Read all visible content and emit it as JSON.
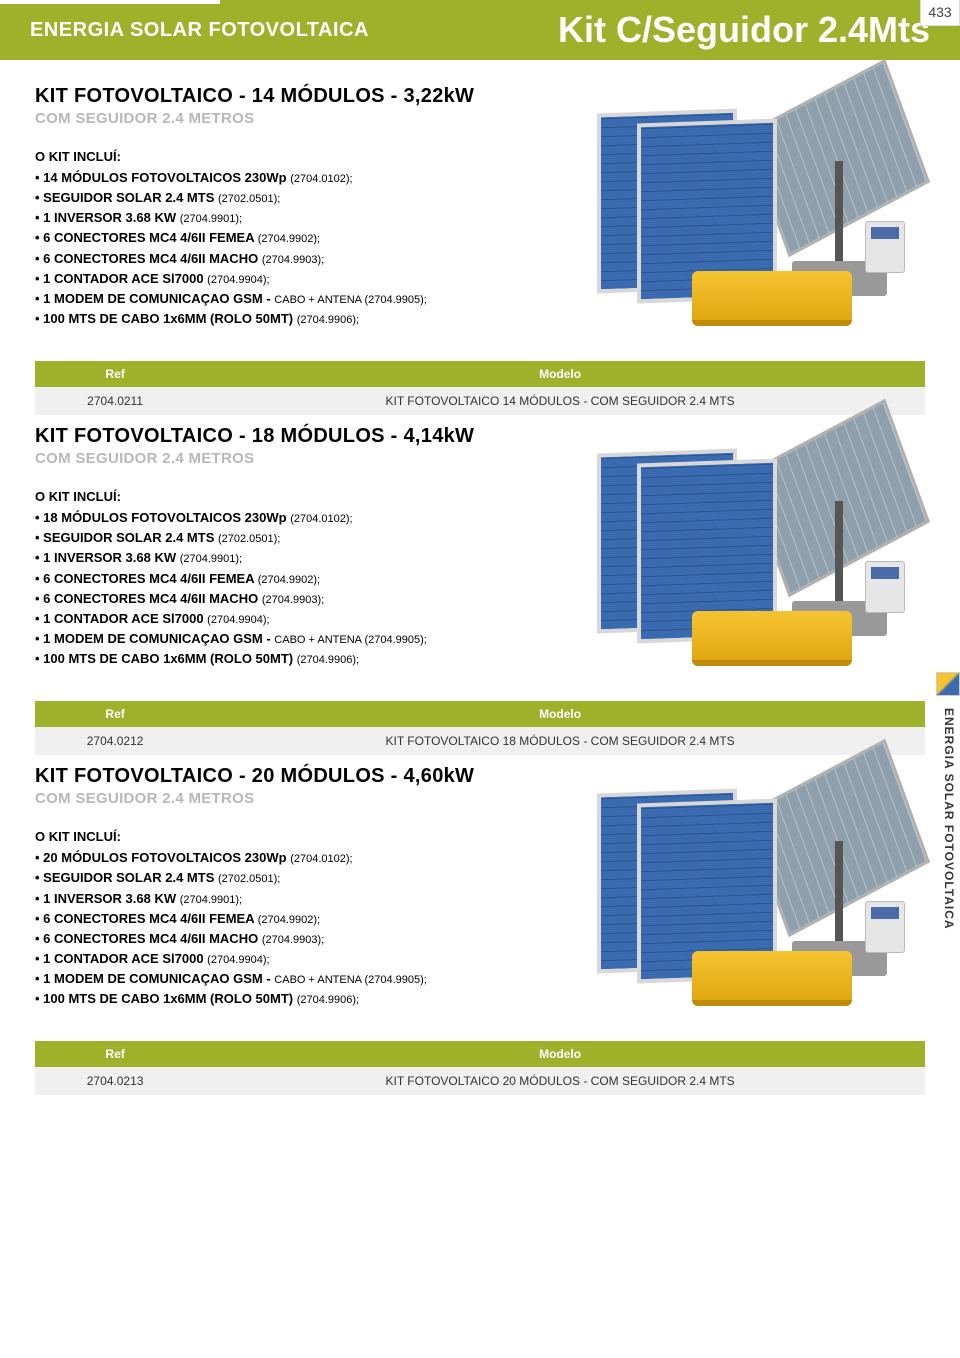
{
  "colors": {
    "brand_green": "#9eb12b",
    "muted_gray": "#b8b8b8",
    "row_bg": "#f0f0f0",
    "panel_blue": "#3a6bb0",
    "inverter_yellow": "#f5c431"
  },
  "header": {
    "category": "ENERGIA SOLAR FOTOVOLTAICA",
    "title": "Kit C/Seguidor 2.4Mts",
    "page_number": "433"
  },
  "side_tab": "ENERGIA SOLAR FOTOVOLTAICA",
  "table_headers": {
    "ref": "Ref",
    "modelo": "Modelo"
  },
  "inclui_label": "O KIT INCLUÍ:",
  "kits": [
    {
      "title": "KIT FOTOVOLTAICO - 14 MÓDULOS - 3,22kW",
      "subtitle": "COM SEGUIDOR 2.4 METROS",
      "items": [
        {
          "main": "14 MÓDULOS FOTOVOLTAICOS 230Wp ",
          "code": "(2704.0102);"
        },
        {
          "main": "SEGUIDOR SOLAR 2.4 MTS ",
          "code": "(2702.0501);"
        },
        {
          "main": "1 INVERSOR  3.68 KW ",
          "code": "(2704.9901);"
        },
        {
          "main": "6 CONECTORES MC4 4/6II FEMEA ",
          "code": "(2704.9902);"
        },
        {
          "main": "6 CONECTORES MC4 4/6II MACHO ",
          "code": "(2704.9903);"
        },
        {
          "main": "1 CONTADOR ACE Sl7000 ",
          "code": "(2704.9904);"
        },
        {
          "main": "1 MODEM DE COMUNICAÇAO GSM - ",
          "code": "CABO + ANTENA (2704.9905);"
        },
        {
          "main": "100 MTS DE CABO 1x6MM (ROLO 50MT) ",
          "code": "(2704.9906);"
        }
      ],
      "ref": "2704.0211",
      "modelo": "KIT FOTOVOLTAICO 14 MÓDULOS - COM SEGUIDOR 2.4 MTS"
    },
    {
      "title": "KIT FOTOVOLTAICO - 18 MÓDULOS - 4,14kW",
      "subtitle": "COM SEGUIDOR 2.4 METROS",
      "items": [
        {
          "main": "18 MÓDULOS FOTOVOLTAICOS 230Wp ",
          "code": "(2704.0102);"
        },
        {
          "main": "SEGUIDOR SOLAR 2.4 MTS ",
          "code": "(2702.0501);"
        },
        {
          "main": "1 INVERSOR  3.68 KW ",
          "code": "(2704.9901);"
        },
        {
          "main": "6 CONECTORES MC4 4/6II FEMEA ",
          "code": "(2704.9902);"
        },
        {
          "main": "6 CONECTORES MC4 4/6II MACHO ",
          "code": "(2704.9903);"
        },
        {
          "main": "1 CONTADOR ACE Sl7000 ",
          "code": "(2704.9904);"
        },
        {
          "main": "1 MODEM DE COMUNICAÇAO GSM - ",
          "code": "CABO + ANTENA (2704.9905);"
        },
        {
          "main": "100 MTS DE CABO 1x6MM (ROLO 50MT) ",
          "code": "(2704.9906);"
        }
      ],
      "ref": "2704.0212",
      "modelo": "KIT FOTOVOLTAICO 18 MÓDULOS - COM SEGUIDOR 2.4 MTS"
    },
    {
      "title": "KIT FOTOVOLTAICO - 20 MÓDULOS - 4,60kW",
      "subtitle": "COM SEGUIDOR 2.4 METROS",
      "items": [
        {
          "main": "20 MÓDULOS FOTOVOLTAICOS 230Wp ",
          "code": "(2704.0102);"
        },
        {
          "main": "SEGUIDOR SOLAR 2.4 MTS ",
          "code": "(2702.0501);"
        },
        {
          "main": "1 INVERSOR  3.68 KW ",
          "code": "(2704.9901);"
        },
        {
          "main": "6 CONECTORES MC4 4/6II FEMEA ",
          "code": "(2704.9902);"
        },
        {
          "main": "6 CONECTORES MC4 4/6II MACHO ",
          "code": "(2704.9903);"
        },
        {
          "main": "1 CONTADOR ACE Sl7000 ",
          "code": "(2704.9904);"
        },
        {
          "main": "1 MODEM DE COMUNICAÇAO GSM - ",
          "code": "CABO + ANTENA (2704.9905);"
        },
        {
          "main": "100 MTS DE CABO 1x6MM (ROLO 50MT) ",
          "code": "(2704.9906);"
        }
      ],
      "ref": "2704.0213",
      "modelo": "KIT FOTOVOLTAICO 20 MÓDULOS - COM SEGUIDOR 2.4 MTS"
    }
  ]
}
